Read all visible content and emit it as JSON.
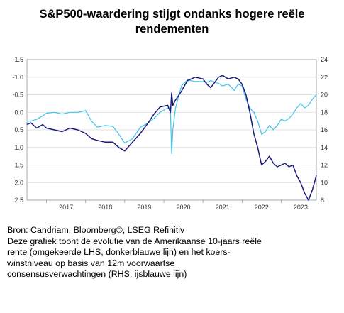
{
  "title_lines": [
    "S&P500-waardering stijgt ondanks hogere reële",
    "rendementen"
  ],
  "caption": {
    "source": "Bron: Candriam, Bloomberg©, LSEG Refinitiv",
    "description_lines": [
      "Deze grafiek toont de evolutie van de Amerikaanse 10-jaars reële",
      "rente (omgekeerde LHS, donkerblauwe lijn) en het koers-",
      "winstniveau op basis van 12m voorwaartse",
      "consensusverwachtingen (RHS, ijsblauwe lijn)"
    ]
  },
  "colors": {
    "real_yield_line": "#1a1a7e",
    "pe_line": "#3fc3e8",
    "grid": "#d9d9d9",
    "axis": "#9a9a9a"
  },
  "chart_data": {
    "type": "line",
    "xlabel": "",
    "ylabel": "",
    "x_ticks": [
      "2017",
      "2018",
      "2019",
      "2020",
      "2021",
      "2022",
      "2023"
    ],
    "x_range": [
      2016.5,
      2023.9
    ],
    "y_left": {
      "inverted": true,
      "range": [
        -1.5,
        2.5
      ],
      "ticks": [
        "-1.5",
        "-1.0",
        "-0.5",
        "0.0",
        "0.5",
        "1.0",
        "1.5",
        "2.0",
        "2.5"
      ]
    },
    "y_right": {
      "range": [
        8,
        24
      ],
      "ticks": [
        "8",
        "10",
        "12",
        "14",
        "16",
        "18",
        "20",
        "22",
        "24"
      ]
    },
    "grid": "horizontal",
    "series": [
      {
        "axis": "left",
        "x": [
          2016.5,
          2016.6,
          2016.75,
          2016.9,
          2017.0,
          2017.2,
          2017.4,
          2017.6,
          2017.8,
          2018.0,
          2018.15,
          2018.3,
          2018.5,
          2018.7,
          2018.85,
          2019.0,
          2019.2,
          2019.4,
          2019.6,
          2019.75,
          2019.9,
          2020.1,
          2020.17,
          2020.2,
          2020.23,
          2020.3,
          2020.45,
          2020.6,
          2020.8,
          2021.0,
          2021.1,
          2021.2,
          2021.4,
          2021.5,
          2021.65,
          2021.8,
          2021.9,
          2022.0,
          2022.1,
          2022.2,
          2022.3,
          2022.4,
          2022.5,
          2022.6,
          2022.7,
          2022.8,
          2022.9,
          2023.0,
          2023.1,
          2023.2,
          2023.3,
          2023.4,
          2023.5,
          2023.6,
          2023.7,
          2023.8,
          2023.9
        ],
        "y": [
          0.35,
          0.3,
          0.45,
          0.35,
          0.45,
          0.5,
          0.55,
          0.45,
          0.5,
          0.6,
          0.75,
          0.8,
          0.85,
          0.85,
          1.0,
          1.1,
          0.85,
          0.6,
          0.3,
          0.05,
          -0.15,
          -0.2,
          0.0,
          -0.55,
          -0.2,
          -0.35,
          -0.6,
          -0.9,
          -1.0,
          -0.95,
          -0.8,
          -0.7,
          -1.0,
          -1.05,
          -0.95,
          -1.0,
          -0.95,
          -0.8,
          -0.5,
          0.0,
          0.6,
          1.0,
          1.5,
          1.4,
          1.25,
          1.45,
          1.55,
          1.5,
          1.45,
          1.55,
          1.5,
          1.8,
          2.0,
          2.3,
          2.5,
          2.2,
          1.8
        ]
      },
      {
        "axis": "right",
        "x": [
          2016.5,
          2016.6,
          2016.75,
          2016.9,
          2017.0,
          2017.2,
          2017.4,
          2017.6,
          2017.8,
          2018.0,
          2018.15,
          2018.3,
          2018.5,
          2018.7,
          2018.85,
          2019.0,
          2019.2,
          2019.4,
          2019.6,
          2019.75,
          2019.9,
          2020.1,
          2020.17,
          2020.2,
          2020.23,
          2020.3,
          2020.45,
          2020.6,
          2020.8,
          2021.0,
          2021.1,
          2021.2,
          2021.4,
          2021.5,
          2021.65,
          2021.8,
          2021.9,
          2022.0,
          2022.1,
          2022.2,
          2022.3,
          2022.4,
          2022.5,
          2022.6,
          2022.7,
          2022.8,
          2022.9,
          2023.0,
          2023.1,
          2023.2,
          2023.3,
          2023.4,
          2023.5,
          2023.6,
          2023.7,
          2023.8,
          2023.9
        ],
        "y": [
          17.0,
          17.0,
          17.2,
          17.6,
          17.9,
          18.0,
          17.8,
          18.0,
          18.0,
          18.2,
          17.0,
          16.3,
          16.5,
          16.4,
          15.5,
          14.5,
          15.0,
          16.3,
          16.8,
          17.3,
          18.0,
          18.5,
          18.2,
          13.3,
          16.0,
          18.5,
          21.0,
          21.7,
          21.5,
          21.5,
          21.4,
          21.6,
          21.3,
          21.0,
          21.2,
          20.5,
          21.2,
          21.0,
          19.5,
          18.5,
          18.0,
          17.0,
          15.5,
          15.8,
          16.5,
          16.0,
          16.5,
          17.2,
          17.0,
          17.3,
          17.8,
          18.5,
          19.0,
          18.5,
          18.8,
          19.5,
          20.0
        ]
      }
    ]
  }
}
